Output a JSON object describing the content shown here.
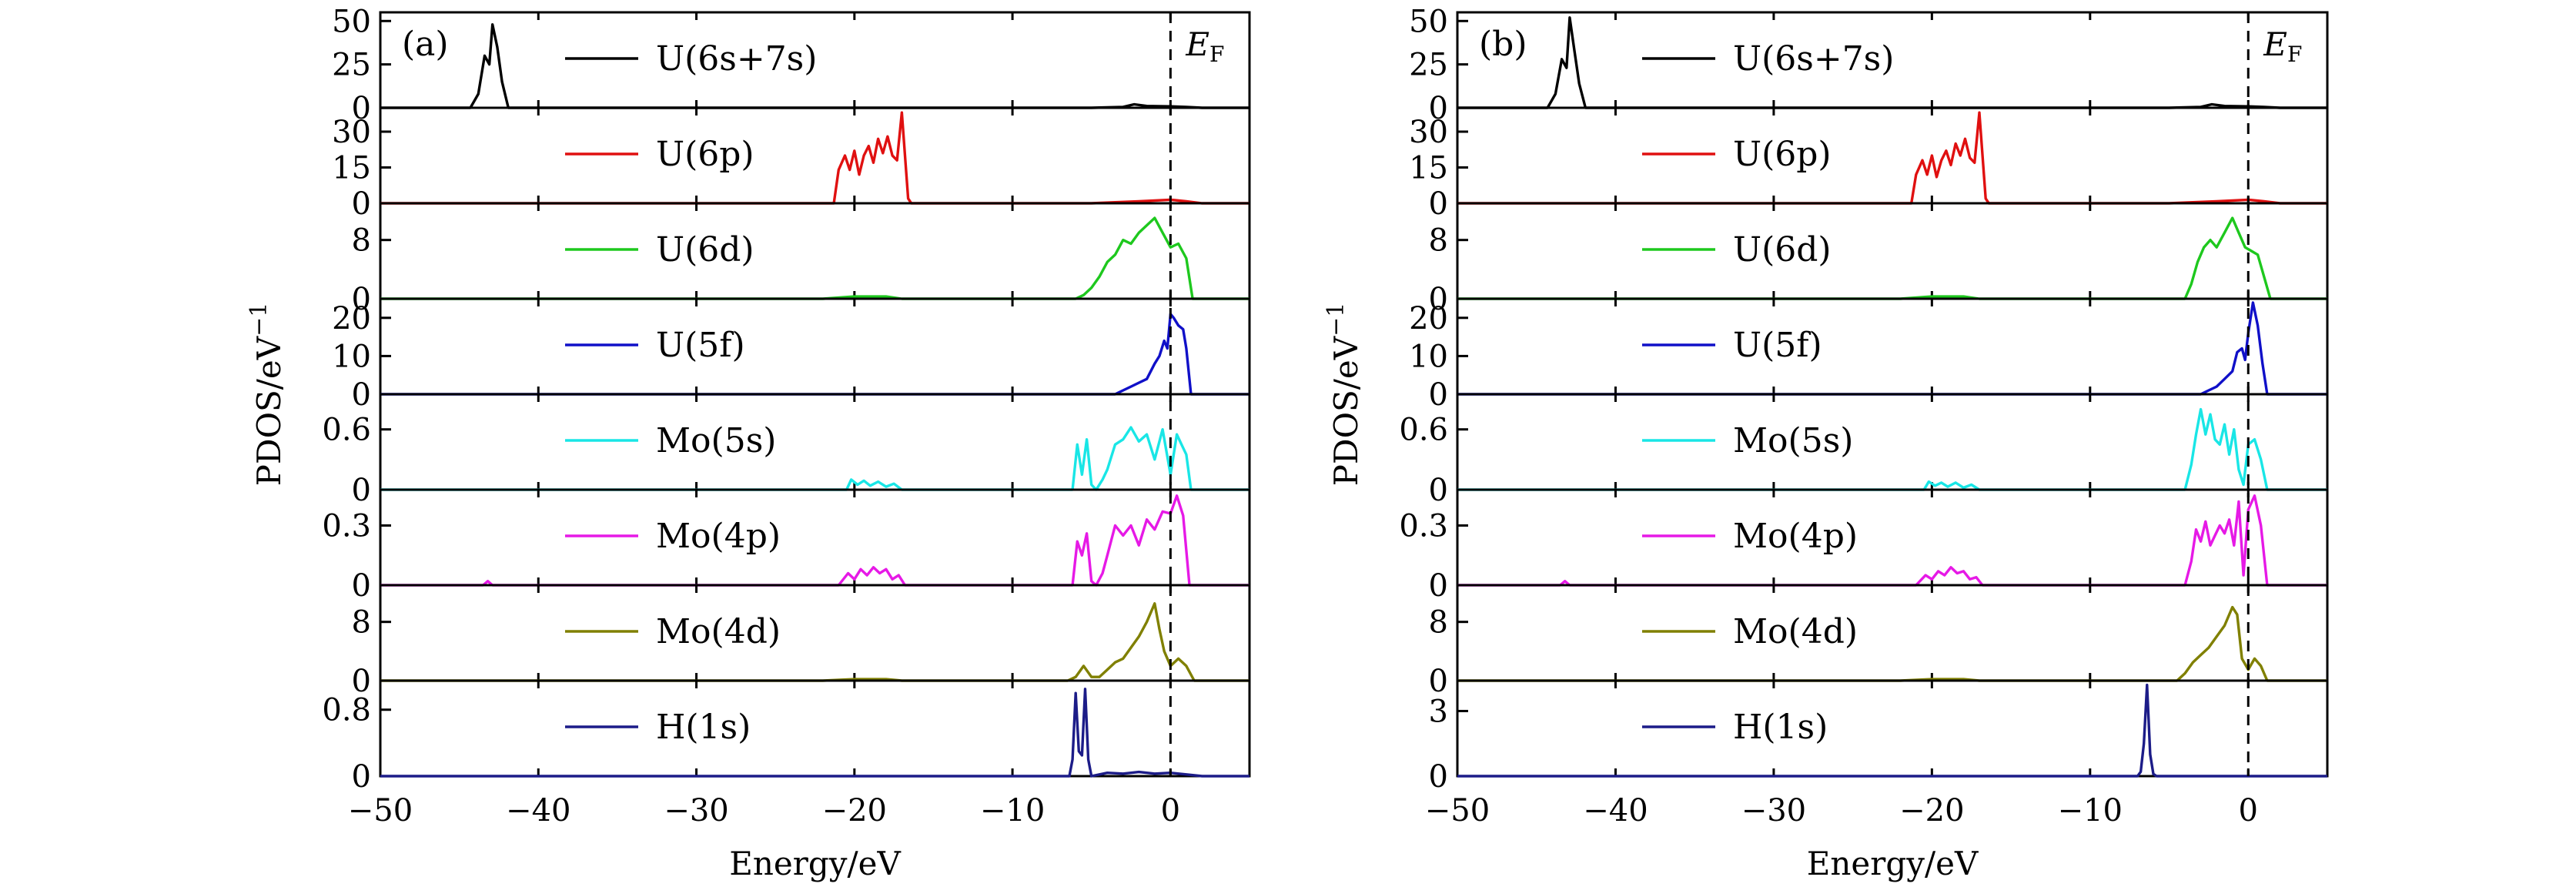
{
  "chart_data": [
    {
      "type": "line",
      "panel_label": "(a)",
      "xlabel": "Energy/eV",
      "ylabel": "PDOS/eV",
      "ylabel_exponent": "−1",
      "xlim": [
        -50,
        5
      ],
      "xticks": [
        -50,
        -40,
        -30,
        -20,
        -10,
        0
      ],
      "xtick_labels": [
        "−50",
        "−40",
        "−30",
        "−20",
        "−10",
        "0"
      ],
      "fermi_label": "E",
      "fermi_subscript": "F",
      "fermi_energy": 0,
      "subplots": [
        {
          "name": "U(6s+7s)",
          "color": "#000000",
          "ylim": [
            0,
            55
          ],
          "yticks": [
            0,
            25,
            50
          ],
          "ytick_labels": [
            "0",
            "25",
            "50"
          ],
          "x": [
            -50,
            -44.3,
            -43.8,
            -43.4,
            -43.1,
            -42.9,
            -42.6,
            -42.3,
            -41.9,
            -5,
            -3,
            -2.3,
            -1.5,
            0,
            1,
            2,
            5
          ],
          "y": [
            0,
            0,
            8,
            30,
            25,
            48,
            35,
            15,
            0,
            0,
            0.5,
            2,
            1,
            0.8,
            0.5,
            0,
            0
          ]
        },
        {
          "name": "U(6p)",
          "color": "#e01010",
          "ylim": [
            0,
            40
          ],
          "yticks": [
            0,
            15,
            30
          ],
          "ytick_labels": [
            "0",
            "15",
            "30"
          ],
          "x": [
            -50,
            -21.3,
            -21,
            -20.6,
            -20.3,
            -20,
            -19.7,
            -19.4,
            -19.1,
            -18.8,
            -18.5,
            -18.2,
            -17.9,
            -17.6,
            -17.3,
            -17,
            -16.6,
            -16.4,
            -5,
            -2,
            0,
            1,
            2,
            5
          ],
          "y": [
            0,
            0,
            14,
            20,
            14,
            22,
            12,
            20,
            24,
            17,
            27,
            21,
            28,
            20,
            18,
            38,
            2,
            0,
            0,
            0.8,
            1.5,
            0.8,
            0,
            0
          ]
        },
        {
          "name": "U(6d)",
          "color": "#1ec81e",
          "ylim": [
            0,
            13
          ],
          "yticks": [
            0,
            8
          ],
          "ytick_labels": [
            "0",
            "8"
          ],
          "x": [
            -50,
            -22,
            -20,
            -18,
            -17,
            -6,
            -5.5,
            -5,
            -4.5,
            -4,
            -3.5,
            -3,
            -2.5,
            -2,
            -1.5,
            -1,
            -0.5,
            0,
            0.5,
            1,
            1.4,
            2,
            5
          ],
          "y": [
            0,
            0,
            0.3,
            0.3,
            0,
            0,
            0.5,
            1.5,
            3,
            5,
            6,
            8,
            7.5,
            9,
            10,
            11,
            9,
            7,
            7.5,
            5.5,
            0,
            0,
            0
          ]
        },
        {
          "name": "U(5f)",
          "color": "#1010c8",
          "ylim": [
            0,
            25
          ],
          "yticks": [
            0,
            10,
            20
          ],
          "ytick_labels": [
            "0",
            "10",
            "20"
          ],
          "x": [
            -50,
            -3.5,
            -3,
            -2.5,
            -2,
            -1.5,
            -1,
            -0.7,
            -0.4,
            -0.2,
            0,
            0.2,
            0.5,
            0.8,
            1,
            1.3,
            5
          ],
          "y": [
            0,
            0,
            1,
            2,
            3,
            4,
            8,
            10,
            14,
            12,
            21,
            20,
            18,
            17,
            12,
            0,
            0
          ]
        },
        {
          "name": "Mo(5s)",
          "color": "#19e6e6",
          "ylim": [
            0,
            0.95
          ],
          "yticks": [
            0,
            0.6
          ],
          "ytick_labels": [
            "0",
            "0.6"
          ],
          "x": [
            -50,
            -20.5,
            -20.2,
            -19.8,
            -19.4,
            -19,
            -18.5,
            -18,
            -17.5,
            -17,
            -6.2,
            -5.9,
            -5.6,
            -5.3,
            -5,
            -4.7,
            -4.3,
            -4,
            -3.5,
            -3,
            -2.5,
            -2,
            -1.5,
            -1,
            -0.5,
            0,
            0.4,
            0.7,
            1,
            1.3,
            5
          ],
          "y": [
            0,
            0,
            0.1,
            0.05,
            0.09,
            0.04,
            0.08,
            0.03,
            0.06,
            0,
            0,
            0.45,
            0.15,
            0.5,
            0.05,
            0,
            0.1,
            0.2,
            0.45,
            0.5,
            0.62,
            0.48,
            0.55,
            0.3,
            0.6,
            0.15,
            0.55,
            0.45,
            0.35,
            0,
            0
          ]
        },
        {
          "name": "Mo(4p)",
          "color": "#e619e6",
          "ylim": [
            0,
            0.48
          ],
          "yticks": [
            0,
            0.3
          ],
          "ytick_labels": [
            "0",
            "0.3"
          ],
          "x": [
            -50,
            -43.5,
            -43.2,
            -42.9,
            -21,
            -20.4,
            -20,
            -19.6,
            -19.2,
            -18.8,
            -18.4,
            -18,
            -17.6,
            -17.2,
            -16.8,
            -6.2,
            -5.9,
            -5.6,
            -5.3,
            -5,
            -4.7,
            -4.3,
            -4,
            -3.5,
            -3,
            -2.5,
            -2,
            -1.5,
            -1,
            -0.5,
            0,
            0.4,
            0.8,
            1.2,
            5
          ],
          "y": [
            0,
            0,
            0.02,
            0,
            0,
            0.06,
            0.03,
            0.08,
            0.05,
            0.09,
            0.06,
            0.08,
            0.03,
            0.05,
            0,
            0,
            0.22,
            0.15,
            0.26,
            0.02,
            0,
            0.06,
            0.15,
            0.3,
            0.25,
            0.3,
            0.2,
            0.33,
            0.28,
            0.37,
            0.36,
            0.45,
            0.35,
            0,
            0
          ]
        },
        {
          "name": "Mo(4d)",
          "color": "#808000",
          "ylim": [
            0,
            13
          ],
          "yticks": [
            0,
            8
          ],
          "ytick_labels": [
            "0",
            "8"
          ],
          "x": [
            -50,
            -22,
            -20,
            -18,
            -17,
            -6.5,
            -6,
            -5.5,
            -5,
            -4.5,
            -4,
            -3.5,
            -3,
            -2.5,
            -2,
            -1.5,
            -1,
            -0.7,
            -0.4,
            0,
            0.5,
            1,
            1.5,
            5
          ],
          "y": [
            0,
            0,
            0.2,
            0.2,
            0,
            0,
            0.5,
            2,
            0.5,
            0.5,
            1.5,
            2.5,
            3,
            4.5,
            6,
            8,
            10.5,
            7,
            4,
            2,
            3,
            2,
            0,
            0
          ]
        },
        {
          "name": "H(1s)",
          "color": "#1c1c88",
          "ylim": [
            0,
            1.15
          ],
          "yticks": [
            0,
            0.8
          ],
          "ytick_labels": [
            "0",
            "0.8"
          ],
          "x": [
            -50,
            -6.4,
            -6.2,
            -6,
            -5.8,
            -5.6,
            -5.4,
            -5.2,
            -5,
            -4,
            -3,
            -2,
            -1,
            0,
            1,
            2,
            5
          ],
          "y": [
            0,
            0,
            0.2,
            1.0,
            0.3,
            0.25,
            1.05,
            0.2,
            0,
            0.04,
            0.03,
            0.05,
            0.03,
            0.04,
            0.02,
            0,
            0
          ]
        }
      ]
    },
    {
      "type": "line",
      "panel_label": "(b)",
      "xlabel": "Energy/eV",
      "ylabel": "PDOS/eV",
      "ylabel_exponent": "−1",
      "xlim": [
        -50,
        5
      ],
      "xticks": [
        -50,
        -40,
        -30,
        -20,
        -10,
        0
      ],
      "xtick_labels": [
        "−50",
        "−40",
        "−30",
        "−20",
        "−10",
        "0"
      ],
      "fermi_label": "E",
      "fermi_subscript": "F",
      "fermi_energy": 0,
      "subplots": [
        {
          "name": "U(6s+7s)",
          "color": "#000000",
          "ylim": [
            0,
            55
          ],
          "yticks": [
            0,
            25,
            50
          ],
          "ytick_labels": [
            "0",
            "25",
            "50"
          ],
          "x": [
            -50,
            -44.3,
            -43.8,
            -43.4,
            -43.1,
            -42.9,
            -42.6,
            -42.3,
            -41.9,
            -5,
            -3,
            -2.3,
            -1.5,
            0,
            1,
            2,
            5
          ],
          "y": [
            0,
            0,
            8,
            28,
            23,
            52,
            33,
            14,
            0,
            0,
            0.5,
            2,
            1,
            0.8,
            0.5,
            0,
            0
          ]
        },
        {
          "name": "U(6p)",
          "color": "#e01010",
          "ylim": [
            0,
            40
          ],
          "yticks": [
            0,
            15,
            30
          ],
          "ytick_labels": [
            "0",
            "15",
            "30"
          ],
          "x": [
            -50,
            -21.3,
            -21,
            -20.6,
            -20.3,
            -20,
            -19.7,
            -19.4,
            -19.1,
            -18.8,
            -18.5,
            -18.2,
            -17.9,
            -17.6,
            -17.3,
            -17,
            -16.6,
            -16.4,
            -5,
            -2,
            0,
            1,
            2,
            5
          ],
          "y": [
            0,
            0,
            12,
            18,
            12,
            20,
            11,
            18,
            22,
            16,
            25,
            20,
            27,
            19,
            17,
            38,
            2,
            0,
            0,
            0.8,
            1.5,
            0.8,
            0,
            0
          ]
        },
        {
          "name": "U(6d)",
          "color": "#1ec81e",
          "ylim": [
            0,
            13
          ],
          "yticks": [
            0,
            8
          ],
          "ytick_labels": [
            "0",
            "8"
          ],
          "x": [
            -50,
            -22,
            -20,
            -18,
            -17,
            -4,
            -3.6,
            -3.2,
            -2.8,
            -2.4,
            -2,
            -1.5,
            -1,
            -0.6,
            -0.2,
            0.2,
            0.6,
            1,
            1.4,
            2,
            5
          ],
          "y": [
            0,
            0,
            0.3,
            0.3,
            0,
            0,
            2,
            5,
            7,
            8,
            7,
            9,
            11,
            9,
            7,
            6.5,
            6,
            3,
            0,
            0,
            0
          ]
        },
        {
          "name": "U(5f)",
          "color": "#1010c8",
          "ylim": [
            0,
            25
          ],
          "yticks": [
            0,
            10,
            20
          ],
          "ytick_labels": [
            "0",
            "10",
            "20"
          ],
          "x": [
            -50,
            -3,
            -2.5,
            -2,
            -1.5,
            -1,
            -0.7,
            -0.4,
            -0.2,
            0,
            0.3,
            0.6,
            0.9,
            1.2,
            5
          ],
          "y": [
            0,
            0,
            1,
            2,
            4,
            6,
            11,
            12,
            9,
            16,
            24,
            18,
            8,
            0,
            0
          ]
        },
        {
          "name": "Mo(5s)",
          "color": "#19e6e6",
          "ylim": [
            0,
            0.95
          ],
          "yticks": [
            0,
            0.6
          ],
          "ytick_labels": [
            "0",
            "0.6"
          ],
          "x": [
            -50,
            -20.5,
            -20.2,
            -19.8,
            -19.4,
            -19,
            -18.5,
            -18,
            -17.5,
            -17,
            -4,
            -3.6,
            -3.3,
            -3,
            -2.7,
            -2.4,
            -2.1,
            -1.8,
            -1.5,
            -1.2,
            -0.9,
            -0.6,
            -0.3,
            0,
            0.4,
            0.8,
            1.2,
            5
          ],
          "y": [
            0,
            0,
            0.08,
            0.04,
            0.07,
            0.03,
            0.07,
            0.02,
            0.05,
            0,
            0,
            0.25,
            0.55,
            0.8,
            0.55,
            0.75,
            0.5,
            0.45,
            0.65,
            0.35,
            0.6,
            0.2,
            0.05,
            0.45,
            0.5,
            0.3,
            0,
            0
          ]
        },
        {
          "name": "Mo(4p)",
          "color": "#e619e6",
          "ylim": [
            0,
            0.48
          ],
          "yticks": [
            0,
            0.3
          ],
          "ytick_labels": [
            "0",
            "0.3"
          ],
          "x": [
            -50,
            -43.5,
            -43.2,
            -42.9,
            -21,
            -20.4,
            -20,
            -19.6,
            -19.2,
            -18.8,
            -18.4,
            -18,
            -17.6,
            -17.2,
            -16.8,
            -4,
            -3.6,
            -3.3,
            -3,
            -2.7,
            -2.4,
            -2.1,
            -1.8,
            -1.5,
            -1.2,
            -0.9,
            -0.6,
            -0.3,
            0,
            0.4,
            0.8,
            1.2,
            5
          ],
          "y": [
            0,
            0,
            0.02,
            0,
            0,
            0.05,
            0.03,
            0.07,
            0.05,
            0.09,
            0.06,
            0.07,
            0.03,
            0.04,
            0,
            0,
            0.12,
            0.28,
            0.22,
            0.32,
            0.2,
            0.25,
            0.3,
            0.26,
            0.33,
            0.2,
            0.42,
            0.05,
            0.38,
            0.45,
            0.3,
            0,
            0
          ]
        },
        {
          "name": "Mo(4d)",
          "color": "#808000",
          "ylim": [
            0,
            13
          ],
          "yticks": [
            0,
            8
          ],
          "ytick_labels": [
            "0",
            "8"
          ],
          "x": [
            -50,
            -22,
            -20,
            -18,
            -17,
            -4.5,
            -4,
            -3.5,
            -3,
            -2.5,
            -2,
            -1.5,
            -1,
            -0.7,
            -0.4,
            0,
            0.4,
            0.8,
            1.2,
            5
          ],
          "y": [
            0,
            0,
            0.2,
            0.2,
            0,
            0,
            1,
            2.5,
            3.5,
            4.5,
            6,
            7.5,
            10,
            9,
            3,
            1.5,
            3,
            2,
            0,
            0
          ]
        },
        {
          "name": "H(1s)",
          "color": "#1c1c88",
          "ylim": [
            0,
            4.4
          ],
          "yticks": [
            0,
            3
          ],
          "ytick_labels": [
            "0",
            "3"
          ],
          "x": [
            -50,
            -7,
            -6.8,
            -6.6,
            -6.4,
            -6.2,
            -6,
            -5.8,
            5
          ],
          "y": [
            0,
            0,
            0.2,
            1.5,
            4.2,
            1.0,
            0.1,
            0,
            0
          ]
        }
      ]
    }
  ]
}
